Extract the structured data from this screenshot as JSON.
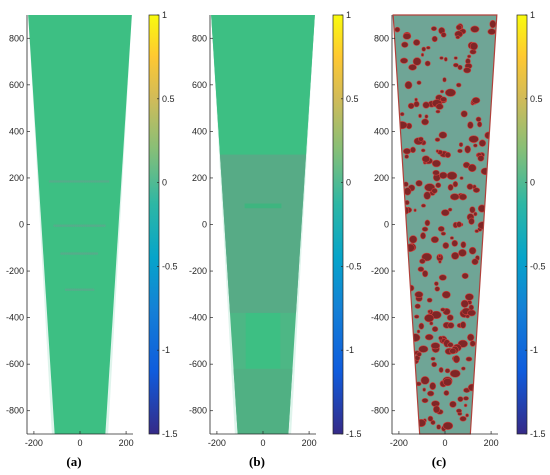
{
  "panels": [
    {
      "id": "a",
      "caption": "(a)",
      "variant": "uniform",
      "colorbar_ticks": [
        "1",
        "0.5",
        "0",
        "-0.5",
        "-1",
        "-1.5"
      ]
    },
    {
      "id": "b",
      "caption": "(b)",
      "variant": "regions",
      "colorbar_ticks": [
        "1",
        "0.5",
        "0",
        "-0.5",
        "-1",
        "-1.5"
      ]
    },
    {
      "id": "c",
      "caption": "(c)",
      "variant": "damage",
      "colorbar_ticks": [
        "1",
        "0.5",
        "0",
        "-0.5",
        "-1",
        "-1.5"
      ]
    }
  ],
  "chart_data": [
    {
      "type": "heatmap",
      "caption": "(a)",
      "xlim": [
        -230,
        230
      ],
      "ylim": [
        -900,
        900
      ],
      "xticks": [
        -200,
        0,
        200
      ],
      "yticks": [
        800,
        600,
        400,
        200,
        0,
        -200,
        -400,
        -600,
        -800
      ],
      "colorbar": {
        "min": -1.5,
        "max": 1,
        "ticks": [
          1,
          0.5,
          0,
          -0.5,
          -1,
          -1.5
        ],
        "colormap": "parula"
      },
      "domain_polygon": [
        [
          -225,
          900
        ],
        [
          225,
          900
        ],
        [
          110,
          -900
        ],
        [
          -110,
          -900
        ]
      ],
      "dominant_value": 0.2
    },
    {
      "type": "heatmap",
      "caption": "(b)",
      "xlim": [
        -230,
        230
      ],
      "ylim": [
        -900,
        900
      ],
      "xticks": [
        -200,
        0,
        200
      ],
      "yticks": [
        800,
        600,
        400,
        200,
        0,
        -200,
        -400,
        -600,
        -800
      ],
      "colorbar": {
        "min": -1.5,
        "max": 1,
        "ticks": [
          1,
          0.5,
          0,
          -0.5,
          -1,
          -1.5
        ],
        "colormap": "parula"
      },
      "domain_polygon": [
        [
          -225,
          900
        ],
        [
          225,
          900
        ],
        [
          110,
          -900
        ],
        [
          -110,
          -900
        ]
      ],
      "dominant_value": 0.2,
      "secondary_region_value": 0.05
    },
    {
      "type": "heatmap",
      "caption": "(c)",
      "xlim": [
        -230,
        230
      ],
      "ylim": [
        -900,
        900
      ],
      "xticks": [
        -200,
        0,
        200
      ],
      "yticks": [
        800,
        600,
        400,
        200,
        0,
        -200,
        -400,
        -600,
        -800
      ],
      "colorbar": {
        "min": -1.5,
        "max": 1,
        "ticks": [
          1,
          0.5,
          0,
          -0.5,
          -1,
          -1.5
        ],
        "colormap": "parula"
      },
      "domain_polygon": [
        [
          -225,
          900
        ],
        [
          225,
          900
        ],
        [
          110,
          -900
        ],
        [
          -110,
          -900
        ]
      ],
      "dominant_value": 0.05,
      "hotspot_value": 0.6
    }
  ],
  "colors": {
    "uniform_fill": "#3dbf83",
    "region_fill": "#57ab86",
    "damage_fill": "#6fa596",
    "hotspot_fill": "#7f2626",
    "hotspot_edge": "#d0403c",
    "axis": "#262626"
  }
}
